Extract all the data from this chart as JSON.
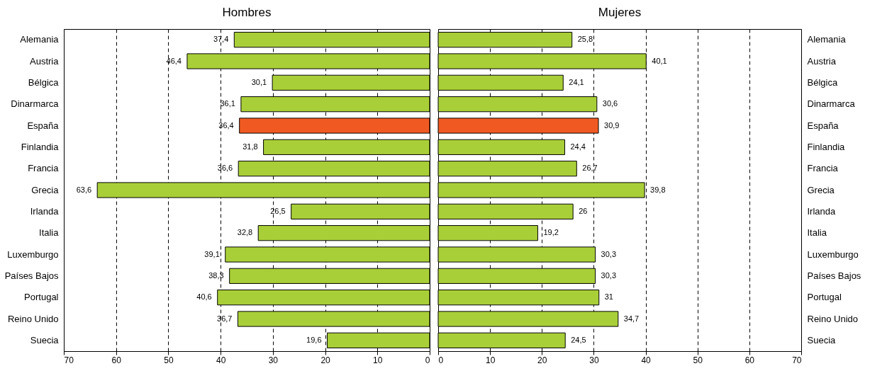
{
  "chart_data": [
    {
      "type": "bar",
      "orientation": "horizontal",
      "title": "Hombres",
      "categories": [
        "Alemania",
        "Austria",
        "Bélgica",
        "Dinarmarca",
        "España",
        "Finlandia",
        "Francia",
        "Grecia",
        "Irlanda",
        "Italia",
        "Luxemburgo",
        "Países Bajos",
        "Portugal",
        "Reino Unido",
        "Suecia"
      ],
      "values": [
        37.4,
        46.4,
        30.1,
        36.1,
        36.4,
        31.8,
        36.6,
        63.6,
        26.5,
        32.8,
        39.1,
        38.3,
        40.6,
        36.7,
        19.6
      ],
      "value_labels": [
        "37,4",
        "46,4",
        "30,1",
        "36,1",
        "36,4",
        "31,8",
        "36,6",
        "63,6",
        "26,5",
        "32,8",
        "39,1",
        "38,3",
        "40,6",
        "36,7",
        "19,6"
      ],
      "colors": [
        "#a9cf38",
        "#a9cf38",
        "#a9cf38",
        "#a9cf38",
        "#f05a22",
        "#a9cf38",
        "#a9cf38",
        "#a9cf38",
        "#a9cf38",
        "#a9cf38",
        "#a9cf38",
        "#a9cf38",
        "#a9cf38",
        "#a9cf38",
        "#a9cf38"
      ],
      "xlim": [
        70,
        0
      ],
      "xticks": [
        70,
        60,
        50,
        40,
        30,
        20,
        10,
        0
      ],
      "grid": "x",
      "legend": false
    },
    {
      "type": "bar",
      "orientation": "horizontal",
      "title": "Mujeres",
      "categories": [
        "Alemania",
        "Austria",
        "Bélgica",
        "Dinarmarca",
        "España",
        "Finlandia",
        "Francia",
        "Grecia",
        "Irlanda",
        "Italia",
        "Luxemburgo",
        "Países Bajos",
        "Portugal",
        "Reino Unido",
        "Suecia"
      ],
      "values": [
        25.8,
        40.1,
        24.1,
        30.6,
        30.9,
        24.4,
        26.7,
        39.8,
        26,
        19.2,
        30.3,
        30.3,
        31,
        34.7,
        24.5
      ],
      "value_labels": [
        "25,8",
        "40,1",
        "24,1",
        "30,6",
        "30,9",
        "24,4",
        "26,7",
        "39,8",
        "26",
        "19,2",
        "30,3",
        "30,3",
        "31",
        "34,7",
        "24,5"
      ],
      "colors": [
        "#a9cf38",
        "#a9cf38",
        "#a9cf38",
        "#a9cf38",
        "#f05a22",
        "#a9cf38",
        "#a9cf38",
        "#a9cf38",
        "#a9cf38",
        "#a9cf38",
        "#a9cf38",
        "#a9cf38",
        "#a9cf38",
        "#a9cf38",
        "#a9cf38"
      ],
      "xlim": [
        0,
        70
      ],
      "xticks": [
        0,
        10,
        20,
        30,
        40,
        50,
        60,
        70
      ],
      "grid": "x",
      "legend": false
    }
  ]
}
